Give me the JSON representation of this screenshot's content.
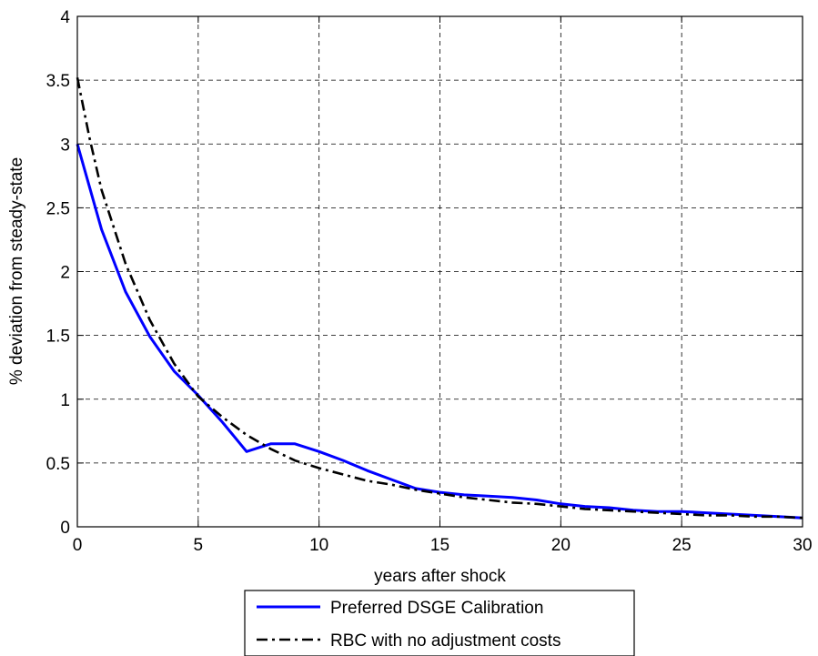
{
  "chart_data": {
    "type": "line",
    "title": "",
    "xlabel": "years after shock",
    "ylabel": "% deviation from steady-state",
    "xlim": [
      0,
      30
    ],
    "ylim": [
      0,
      4
    ],
    "xticks": [
      0,
      5,
      10,
      15,
      20,
      25,
      30
    ],
    "yticks": [
      0,
      0.5,
      1,
      1.5,
      2,
      2.5,
      3,
      3.5,
      4
    ],
    "ytick_labels": [
      "0",
      "0.5",
      "1",
      "1.5",
      "2",
      "2.5",
      "3",
      "3.5",
      "4"
    ],
    "grid": true,
    "legend_position": "below",
    "series": [
      {
        "name": "Preferred DSGE Calibration",
        "color": "#0000ff",
        "style": "solid",
        "x": [
          0,
          1,
          2,
          3,
          4,
          5,
          6,
          7,
          8,
          9,
          10,
          11,
          12,
          13,
          14,
          15,
          16,
          17,
          18,
          19,
          20,
          21,
          22,
          23,
          24,
          25,
          26,
          27,
          28,
          29,
          30
        ],
        "y": [
          3.0,
          2.33,
          1.84,
          1.49,
          1.22,
          1.03,
          0.82,
          0.59,
          0.65,
          0.65,
          0.59,
          0.52,
          0.44,
          0.37,
          0.3,
          0.27,
          0.25,
          0.24,
          0.23,
          0.21,
          0.18,
          0.16,
          0.15,
          0.13,
          0.12,
          0.12,
          0.11,
          0.1,
          0.09,
          0.08,
          0.07
        ]
      },
      {
        "name": "RBC with no adjustment costs",
        "color": "#000000",
        "style": "dashdot",
        "x": [
          0,
          0.5,
          1,
          2,
          3,
          4,
          5,
          6,
          7,
          8,
          9,
          10,
          11,
          12,
          13,
          14,
          15,
          16,
          17,
          18,
          19,
          20,
          21,
          22,
          23,
          24,
          25,
          26,
          27,
          28,
          29,
          30
        ],
        "y": [
          3.52,
          3.05,
          2.64,
          2.06,
          1.62,
          1.28,
          1.02,
          0.86,
          0.72,
          0.61,
          0.52,
          0.46,
          0.41,
          0.36,
          0.33,
          0.29,
          0.26,
          0.23,
          0.21,
          0.19,
          0.18,
          0.16,
          0.14,
          0.13,
          0.12,
          0.11,
          0.1,
          0.09,
          0.09,
          0.08,
          0.08,
          0.07
        ]
      }
    ]
  }
}
